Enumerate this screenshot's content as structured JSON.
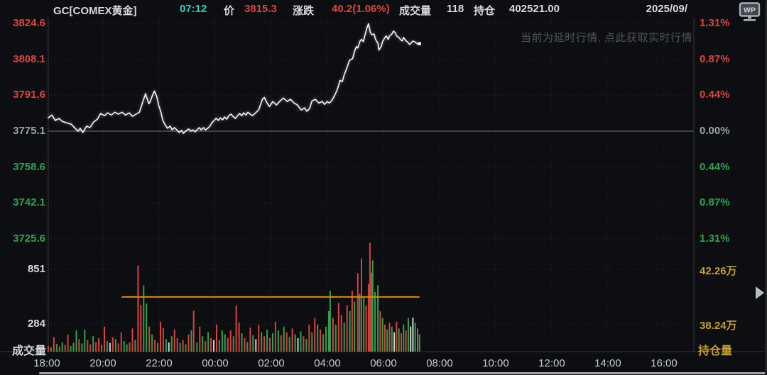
{
  "header": {
    "symbol": "GC[COMEX黄金]",
    "time": "07:12",
    "price_label": "价",
    "price": "3815.3",
    "change_label": "涨跌",
    "change": "40.2(1.06%)",
    "volume_label": "成交量",
    "volume": "118",
    "open_interest_label": "持仓",
    "open_interest": "402521.00",
    "date": "2025/09/",
    "wp_logo_text": "WP"
  },
  "watermark_notice": "当前为延时行情, 点此获取实时行情",
  "panes": {
    "volume_pane_label": "成交量",
    "oi_pane_label": "持仓量"
  },
  "colors": {
    "bg": "#0d0e11",
    "up": "#e2413f",
    "down": "#2da44d",
    "flat": "#9aa0a7",
    "text": "#d8dade",
    "teal": "#2bcfc0",
    "oi_text": "#c79f2d",
    "oi_line": "#d98a0a",
    "grid": "#2a2d34",
    "baseline": "#5b5f67",
    "line": "#f4f5f7",
    "vol_red": "#da403e",
    "vol_green": "#2fa14c",
    "vol_white": "#cfd2d2"
  },
  "chart_data": {
    "type": "line",
    "subtype": "intraday line with volume bars and open-interest line",
    "title": "GC[COMEX黄金] intraday",
    "baseline_price": 3775.1,
    "last_price": 3815.3,
    "change": 40.2,
    "change_pct": "1.06%",
    "session_start": "18:00",
    "price_ticks": [
      {
        "label": "3824.6",
        "pct": "1.31%",
        "value": 3824.6,
        "state": "up"
      },
      {
        "label": "3808.1",
        "pct": "0.87%",
        "value": 3808.1,
        "state": "up"
      },
      {
        "label": "3791.6",
        "pct": "0.44%",
        "value": 3791.6,
        "state": "up"
      },
      {
        "label": "3775.1",
        "pct": "0.00%",
        "value": 3775.1,
        "state": "flat"
      },
      {
        "label": "3758.6",
        "pct": "0.44%",
        "value": 3758.6,
        "state": "down"
      },
      {
        "label": "3742.1",
        "pct": "0.87%",
        "value": 3742.1,
        "state": "down"
      },
      {
        "label": "3725.6",
        "pct": "1.31%",
        "value": 3725.6,
        "state": "down"
      }
    ],
    "volume_ticks": [
      {
        "label": "851",
        "value": 851
      },
      {
        "label": "284",
        "value": 284
      }
    ],
    "oi_ticks": [
      {
        "label": "42.26万",
        "value_wan": 42.26
      },
      {
        "label": "38.24万",
        "value_wan": 38.24
      }
    ],
    "time_ticks": [
      {
        "label": "18:00",
        "m": 0
      },
      {
        "label": "20:00",
        "m": 120
      },
      {
        "label": "22:00",
        "m": 240
      },
      {
        "label": "00:00",
        "m": 360
      },
      {
        "label": "02:00",
        "m": 480
      },
      {
        "label": "04:00",
        "m": 600
      },
      {
        "label": "06:00",
        "m": 720
      },
      {
        "label": "08:00",
        "m": 840
      },
      {
        "label": "10:00",
        "m": 960
      },
      {
        "label": "12:00",
        "m": 1080
      },
      {
        "label": "14:00",
        "m": 1200
      },
      {
        "label": "16:00",
        "m": 1320
      }
    ],
    "oi_line": {
      "value": 402521.0,
      "wan": 40.2521,
      "from_minute": 160,
      "to_minute": 797
    },
    "price_series": [
      [
        3,
        3781.2
      ],
      [
        11,
        3782.5
      ],
      [
        18,
        3780.0
      ],
      [
        26,
        3780.9
      ],
      [
        33,
        3779.6
      ],
      [
        41,
        3779.0
      ],
      [
        52,
        3778.3
      ],
      [
        62,
        3776.1
      ],
      [
        67,
        3775.1
      ],
      [
        71,
        3776.4
      ],
      [
        77,
        3774.5
      ],
      [
        85,
        3777.4
      ],
      [
        92,
        3776.7
      ],
      [
        100,
        3779.3
      ],
      [
        108,
        3780.6
      ],
      [
        115,
        3783.2
      ],
      [
        123,
        3782.2
      ],
      [
        130,
        3783.5
      ],
      [
        138,
        3782.5
      ],
      [
        145,
        3783.8
      ],
      [
        153,
        3782.9
      ],
      [
        161,
        3783.8
      ],
      [
        168,
        3782.5
      ],
      [
        176,
        3783.5
      ],
      [
        183,
        3781.9
      ],
      [
        191,
        3782.9
      ],
      [
        198,
        3783.8
      ],
      [
        203,
        3787.1
      ],
      [
        208,
        3790.3
      ],
      [
        211,
        3792.3
      ],
      [
        215,
        3789.7
      ],
      [
        218,
        3787.7
      ],
      [
        221,
        3788.7
      ],
      [
        226,
        3791.6
      ],
      [
        230,
        3793.5
      ],
      [
        235,
        3791.0
      ],
      [
        239,
        3787.1
      ],
      [
        244,
        3783.8
      ],
      [
        248,
        3780.0
      ],
      [
        253,
        3778.0
      ],
      [
        258,
        3776.4
      ],
      [
        264,
        3777.4
      ],
      [
        268,
        3775.7
      ],
      [
        273,
        3776.7
      ],
      [
        279,
        3775.4
      ],
      [
        283,
        3774.5
      ],
      [
        288,
        3775.4
      ],
      [
        292,
        3774.1
      ],
      [
        297,
        3775.1
      ],
      [
        303,
        3776.1
      ],
      [
        308,
        3775.1
      ],
      [
        312,
        3775.7
      ],
      [
        317,
        3774.8
      ],
      [
        321,
        3775.7
      ],
      [
        326,
        3776.7
      ],
      [
        330,
        3775.7
      ],
      [
        335,
        3776.7
      ],
      [
        339,
        3775.7
      ],
      [
        344,
        3776.4
      ],
      [
        349,
        3777.4
      ],
      [
        353,
        3779.0
      ],
      [
        358,
        3780.0
      ],
      [
        362,
        3781.0
      ],
      [
        367,
        3780.0
      ],
      [
        371,
        3781.2
      ],
      [
        376,
        3780.3
      ],
      [
        380,
        3781.6
      ],
      [
        385,
        3780.6
      ],
      [
        389,
        3782.2
      ],
      [
        394,
        3782.9
      ],
      [
        398,
        3781.9
      ],
      [
        403,
        3780.9
      ],
      [
        408,
        3782.2
      ],
      [
        412,
        3783.2
      ],
      [
        417,
        3782.2
      ],
      [
        421,
        3783.5
      ],
      [
        426,
        3782.5
      ],
      [
        430,
        3783.8
      ],
      [
        435,
        3782.9
      ],
      [
        439,
        3782.2
      ],
      [
        445,
        3783.2
      ],
      [
        453,
        3784.8
      ],
      [
        461,
        3789.7
      ],
      [
        465,
        3790.6
      ],
      [
        471,
        3788.0
      ],
      [
        476,
        3786.4
      ],
      [
        483,
        3788.7
      ],
      [
        491,
        3787.1
      ],
      [
        499,
        3789.0
      ],
      [
        506,
        3790.3
      ],
      [
        514,
        3788.7
      ],
      [
        521,
        3789.7
      ],
      [
        529,
        3788.0
      ],
      [
        536,
        3787.1
      ],
      [
        544,
        3784.8
      ],
      [
        551,
        3785.8
      ],
      [
        556,
        3784.2
      ],
      [
        562,
        3785.5
      ],
      [
        567,
        3789.0
      ],
      [
        574,
        3789.7
      ],
      [
        582,
        3788.0
      ],
      [
        589,
        3788.7
      ],
      [
        594,
        3787.4
      ],
      [
        600,
        3788.7
      ],
      [
        604,
        3788.0
      ],
      [
        609,
        3789.0
      ],
      [
        615,
        3791.3
      ],
      [
        620,
        3793.5
      ],
      [
        624,
        3796.1
      ],
      [
        627,
        3798.4
      ],
      [
        632,
        3797.8
      ],
      [
        636,
        3801.0
      ],
      [
        642,
        3804.2
      ],
      [
        647,
        3807.5
      ],
      [
        651,
        3808.1
      ],
      [
        654,
        3808.4
      ],
      [
        658,
        3811.7
      ],
      [
        662,
        3813.9
      ],
      [
        665,
        3813.3
      ],
      [
        670,
        3816.5
      ],
      [
        673,
        3817.2
      ],
      [
        677,
        3816.2
      ],
      [
        680,
        3818.8
      ],
      [
        685,
        3822.7
      ],
      [
        688,
        3824.4
      ],
      [
        692,
        3820.4
      ],
      [
        695,
        3819.4
      ],
      [
        700,
        3819.7
      ],
      [
        703,
        3817.2
      ],
      [
        708,
        3815.5
      ],
      [
        710,
        3812.3
      ],
      [
        715,
        3813.9
      ],
      [
        718,
        3816.2
      ],
      [
        723,
        3818.1
      ],
      [
        726,
        3818.8
      ],
      [
        730,
        3817.2
      ],
      [
        733,
        3818.8
      ],
      [
        738,
        3819.7
      ],
      [
        741,
        3821.0
      ],
      [
        745,
        3820.4
      ],
      [
        748,
        3818.8
      ],
      [
        753,
        3818.1
      ],
      [
        756,
        3817.2
      ],
      [
        760,
        3816.5
      ],
      [
        763,
        3818.1
      ],
      [
        768,
        3816.5
      ],
      [
        771,
        3816.2
      ],
      [
        776,
        3814.9
      ],
      [
        779,
        3815.5
      ],
      [
        783,
        3816.5
      ],
      [
        786,
        3816.2
      ],
      [
        791,
        3815.5
      ],
      [
        794,
        3814.9
      ],
      [
        797,
        3815.3
      ]
    ],
    "volume_series": [
      [
        3,
        60,
        0
      ],
      [
        9,
        45,
        1
      ],
      [
        15,
        150,
        0
      ],
      [
        21,
        80,
        1
      ],
      [
        27,
        55,
        0
      ],
      [
        33,
        95,
        1
      ],
      [
        39,
        70,
        0
      ],
      [
        45,
        175,
        0
      ],
      [
        51,
        60,
        1
      ],
      [
        57,
        90,
        1
      ],
      [
        63,
        220,
        1
      ],
      [
        69,
        130,
        0
      ],
      [
        75,
        85,
        1
      ],
      [
        81,
        230,
        1
      ],
      [
        87,
        120,
        0
      ],
      [
        93,
        75,
        0
      ],
      [
        99,
        160,
        1
      ],
      [
        105,
        95,
        0
      ],
      [
        111,
        140,
        0
      ],
      [
        117,
        70,
        1
      ],
      [
        123,
        260,
        0
      ],
      [
        129,
        110,
        1
      ],
      [
        135,
        90,
        2
      ],
      [
        141,
        150,
        0
      ],
      [
        147,
        130,
        1
      ],
      [
        153,
        85,
        0
      ],
      [
        159,
        200,
        0
      ],
      [
        165,
        110,
        1
      ],
      [
        171,
        75,
        1
      ],
      [
        177,
        95,
        0
      ],
      [
        183,
        240,
        0
      ],
      [
        189,
        120,
        1
      ],
      [
        195,
        894,
        0
      ],
      [
        201,
        484,
        0
      ],
      [
        207,
        689,
        1
      ],
      [
        213,
        500,
        1
      ],
      [
        219,
        260,
        0
      ],
      [
        225,
        180,
        1
      ],
      [
        231,
        120,
        0
      ],
      [
        237,
        90,
        1
      ],
      [
        243,
        310,
        0
      ],
      [
        249,
        242,
        0
      ],
      [
        255,
        130,
        1
      ],
      [
        261,
        95,
        2
      ],
      [
        267,
        160,
        1
      ],
      [
        273,
        230,
        0
      ],
      [
        279,
        140,
        0
      ],
      [
        285,
        90,
        1
      ],
      [
        291,
        120,
        0
      ],
      [
        297,
        75,
        1
      ],
      [
        303,
        180,
        0
      ],
      [
        309,
        220,
        1
      ],
      [
        314,
        425,
        0
      ],
      [
        321,
        95,
        1
      ],
      [
        327,
        260,
        0
      ],
      [
        333,
        160,
        1
      ],
      [
        339,
        110,
        0
      ],
      [
        345,
        200,
        1
      ],
      [
        351,
        140,
        0
      ],
      [
        357,
        120,
        2
      ],
      [
        363,
        280,
        0
      ],
      [
        369,
        120,
        1
      ],
      [
        375,
        220,
        1
      ],
      [
        381,
        180,
        1
      ],
      [
        387,
        140,
        0
      ],
      [
        393,
        220,
        0
      ],
      [
        399,
        160,
        1
      ],
      [
        405,
        480,
        0
      ],
      [
        411,
        300,
        0
      ],
      [
        417,
        190,
        1
      ],
      [
        423,
        140,
        0
      ],
      [
        429,
        100,
        1
      ],
      [
        435,
        250,
        0
      ],
      [
        441,
        170,
        1
      ],
      [
        447,
        130,
        2
      ],
      [
        453,
        280,
        0
      ],
      [
        459,
        200,
        1
      ],
      [
        465,
        160,
        0
      ],
      [
        471,
        230,
        1
      ],
      [
        477,
        140,
        0
      ],
      [
        483,
        190,
        1
      ],
      [
        489,
        310,
        0
      ],
      [
        495,
        220,
        1
      ],
      [
        501,
        170,
        0
      ],
      [
        507,
        260,
        1
      ],
      [
        513,
        200,
        0
      ],
      [
        519,
        150,
        1
      ],
      [
        525,
        240,
        0
      ],
      [
        531,
        180,
        1
      ],
      [
        537,
        140,
        2
      ],
      [
        543,
        210,
        1
      ],
      [
        549,
        160,
        0
      ],
      [
        555,
        130,
        1
      ],
      [
        561,
        280,
        0
      ],
      [
        567,
        200,
        1
      ],
      [
        573,
        350,
        0
      ],
      [
        579,
        280,
        1
      ],
      [
        585,
        230,
        0
      ],
      [
        591,
        180,
        1
      ],
      [
        597,
        260,
        1
      ],
      [
        603,
        420,
        1
      ],
      [
        606,
        630,
        1
      ],
      [
        612,
        350,
        0
      ],
      [
        618,
        280,
        1
      ],
      [
        624,
        506,
        0
      ],
      [
        630,
        380,
        0
      ],
      [
        636,
        300,
        1
      ],
      [
        642,
        480,
        0
      ],
      [
        648,
        420,
        1
      ],
      [
        653,
        630,
        0
      ],
      [
        658,
        520,
        1
      ],
      [
        665,
        814,
        0
      ],
      [
        669,
        600,
        1
      ],
      [
        673,
        967,
        0
      ],
      [
        678,
        560,
        1
      ],
      [
        683,
        480,
        0
      ],
      [
        688,
        700,
        0
      ],
      [
        691,
        1129,
        0
      ],
      [
        694,
        820,
        0
      ],
      [
        697,
        946,
        1
      ],
      [
        702,
        620,
        1
      ],
      [
        708,
        689,
        1
      ],
      [
        713,
        420,
        0
      ],
      [
        718,
        350,
        1
      ],
      [
        723,
        280,
        0
      ],
      [
        728,
        230,
        1
      ],
      [
        733,
        300,
        0
      ],
      [
        738,
        260,
        1
      ],
      [
        743,
        200,
        2
      ],
      [
        748,
        310,
        0
      ],
      [
        753,
        240,
        1
      ],
      [
        758,
        190,
        0
      ],
      [
        763,
        280,
        1
      ],
      [
        768,
        220,
        0
      ],
      [
        773,
        350,
        1
      ],
      [
        778,
        260,
        2
      ],
      [
        783,
        352,
        2
      ],
      [
        788,
        300,
        1
      ],
      [
        793,
        240,
        0
      ],
      [
        797,
        180,
        1
      ]
    ]
  }
}
